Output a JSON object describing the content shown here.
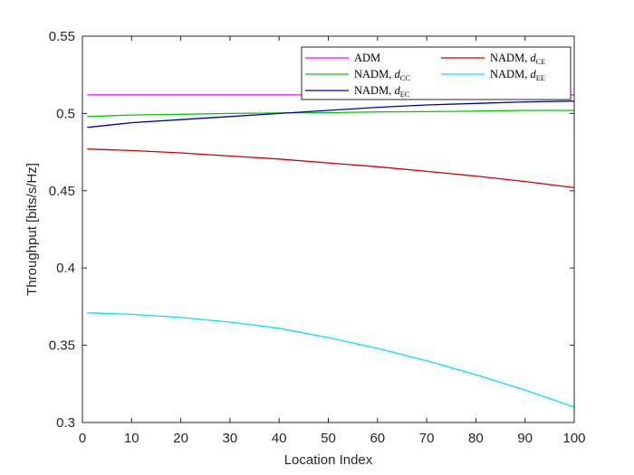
{
  "chart_data": {
    "type": "line",
    "title": "",
    "xlabel": "Location Index",
    "ylabel": "Throughput [bits/s/Hz]",
    "xlim": [
      0,
      100
    ],
    "ylim": [
      0.3,
      0.55
    ],
    "xticks": [
      0,
      10,
      20,
      30,
      40,
      50,
      60,
      70,
      80,
      90,
      100
    ],
    "xtick_labels": [
      "0",
      "10",
      "20",
      "30",
      "40",
      "50",
      "60",
      "70",
      "80",
      "90",
      "100"
    ],
    "yticks": [
      0.3,
      0.35,
      0.4,
      0.45,
      0.5,
      0.55
    ],
    "ytick_labels": [
      "0.3",
      "0.35",
      "0.4",
      "0.45",
      "0.5",
      "0.55"
    ],
    "grid": false,
    "legend": {
      "placement": "top-right",
      "columns": 2,
      "entries": [
        {
          "name": "ADM",
          "main": "ADM",
          "sub": "",
          "color": "#ff00ff"
        },
        {
          "name": "NADM, dCC",
          "main": "NADM, d",
          "sub": "CC",
          "color": "#00cc00"
        },
        {
          "name": "NADM, dEC",
          "main": "NADM, d",
          "sub": "EC",
          "color": "#0000b0"
        },
        {
          "name": "NADM, dCE",
          "main": "NADM, d",
          "sub": "CE",
          "color": "#cc0000"
        },
        {
          "name": "NADM, dEE",
          "main": "NADM, d",
          "sub": "EE",
          "color": "#00e5ee"
        }
      ]
    },
    "x": [
      1,
      10,
      20,
      30,
      40,
      50,
      60,
      70,
      80,
      90,
      100
    ],
    "series": [
      {
        "name": "ADM",
        "color": "#ff00ff",
        "values": [
          0.512,
          0.512,
          0.512,
          0.512,
          0.512,
          0.512,
          0.512,
          0.512,
          0.512,
          0.512,
          0.512
        ]
      },
      {
        "name": "NADM, dCC",
        "color": "#00cc00",
        "values": [
          0.498,
          0.499,
          0.4995,
          0.5,
          0.5003,
          0.5005,
          0.501,
          0.5012,
          0.5015,
          0.502,
          0.502
        ]
      },
      {
        "name": "NADM, dEC",
        "color": "#0000b0",
        "values": [
          0.491,
          0.494,
          0.496,
          0.498,
          0.5,
          0.502,
          0.504,
          0.5055,
          0.5065,
          0.5075,
          0.508
        ]
      },
      {
        "name": "NADM, dCE",
        "color": "#cc0000",
        "values": [
          0.477,
          0.476,
          0.4745,
          0.4725,
          0.4705,
          0.468,
          0.4655,
          0.4625,
          0.4595,
          0.456,
          0.452
        ]
      },
      {
        "name": "NADM, dEE",
        "color": "#00e5ee",
        "values": [
          0.371,
          0.37,
          0.368,
          0.365,
          0.361,
          0.355,
          0.348,
          0.34,
          0.331,
          0.321,
          0.31
        ]
      }
    ]
  }
}
